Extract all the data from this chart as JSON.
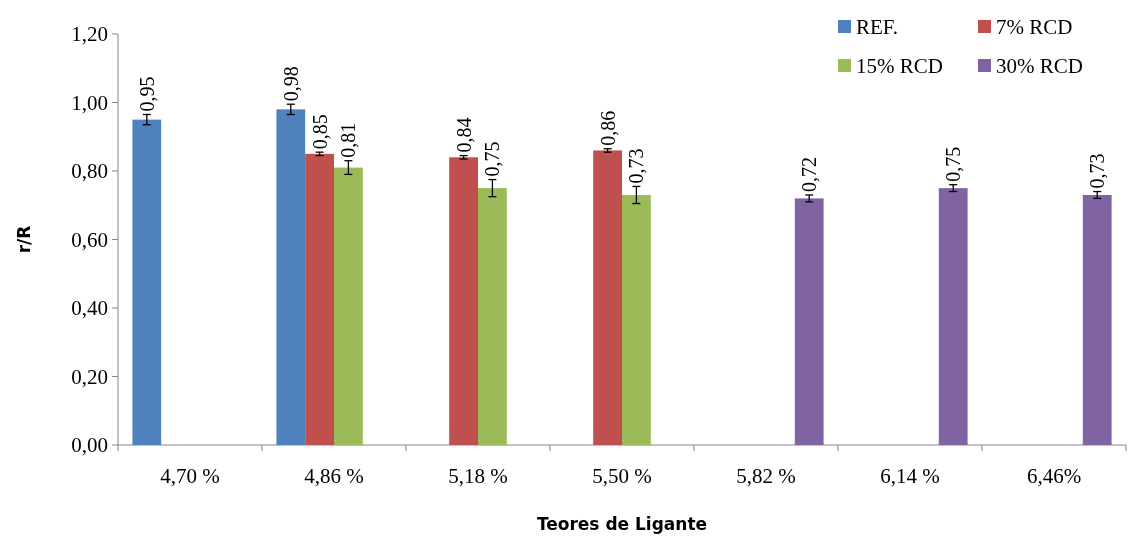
{
  "chart_data": {
    "type": "bar",
    "xlabel": "Teores de Ligante",
    "ylabel": "r/R",
    "categories": [
      "4,70 %",
      "4,86 %",
      "5,18 %",
      "5,50 %",
      "5,82 %",
      "6,14 %",
      "6,46%"
    ],
    "series": [
      {
        "name": "REF.",
        "color": "#4f81bd",
        "values": [
          0.95,
          0.98,
          null,
          null,
          null,
          null,
          null
        ],
        "errors": [
          0.015,
          0.015,
          null,
          null,
          null,
          null,
          null
        ],
        "value_labels": [
          "0,95",
          "0,98",
          null,
          null,
          null,
          null,
          null
        ]
      },
      {
        "name": "7% RCD",
        "color": "#c0504d",
        "values": [
          null,
          0.85,
          0.84,
          0.86,
          null,
          null,
          null
        ],
        "errors": [
          null,
          0.005,
          0.005,
          0.005,
          null,
          null,
          null
        ],
        "value_labels": [
          null,
          "0,85",
          "0,84",
          "0,86",
          null,
          null,
          null
        ]
      },
      {
        "name": "15% RCD",
        "color": "#9bbb59",
        "values": [
          null,
          0.81,
          0.75,
          0.73,
          null,
          null,
          null
        ],
        "errors": [
          null,
          0.02,
          0.025,
          0.025,
          null,
          null,
          null
        ],
        "value_labels": [
          null,
          "0,81",
          "0,75",
          "0,73",
          null,
          null,
          null
        ]
      },
      {
        "name": "30% RCD",
        "color": "#8064a2",
        "values": [
          null,
          null,
          null,
          null,
          0.72,
          0.75,
          0.73
        ],
        "errors": [
          null,
          null,
          null,
          null,
          0.01,
          0.01,
          0.01
        ],
        "value_labels": [
          null,
          null,
          null,
          null,
          "0,72",
          "0,75",
          "0,73"
        ]
      }
    ],
    "ylim": [
      0,
      1.2
    ],
    "yticks": [
      {
        "value": 0,
        "label": "0,00"
      },
      {
        "value": 0.2,
        "label": "0,20"
      },
      {
        "value": 0.4,
        "label": "0,40"
      },
      {
        "value": 0.6,
        "label": "0,60"
      },
      {
        "value": 0.8,
        "label": "0,80"
      },
      {
        "value": 1,
        "label": "1,00"
      },
      {
        "value": 1.2,
        "label": "1,20"
      }
    ],
    "legend": "top right",
    "grid": false
  }
}
